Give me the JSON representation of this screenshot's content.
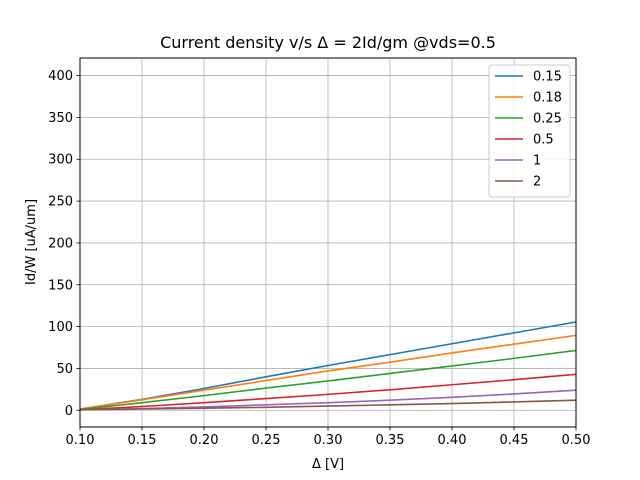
{
  "chart_data": {
    "type": "line",
    "title": "Current density v/s Δ = 2Id/gm @vds=0.5",
    "xlabel": "Δ [V]",
    "ylabel": "Id/W [uA/um]",
    "xlim": [
      0.1,
      0.5
    ],
    "ylim": [
      -20,
      421
    ],
    "xticks": [
      0.1,
      0.15,
      0.2,
      0.25,
      0.3,
      0.35,
      0.4,
      0.45,
      0.5
    ],
    "xtick_labels": [
      "0.10",
      "0.15",
      "0.20",
      "0.25",
      "0.30",
      "0.35",
      "0.40",
      "0.45",
      "0.50"
    ],
    "yticks": [
      0,
      50,
      100,
      150,
      200,
      250,
      300,
      350,
      400
    ],
    "ytick_labels": [
      "0",
      "50",
      "100",
      "150",
      "200",
      "250",
      "300",
      "350",
      "400"
    ],
    "grid": true,
    "legend_position": "top-right",
    "x": [
      0.1,
      0.15,
      0.2,
      0.25,
      0.3,
      0.35,
      0.4,
      0.45,
      0.5
    ],
    "series": [
      {
        "name": "0.15",
        "color": "#1f77b4",
        "values": [
          1.5,
          13,
          26,
          40,
          53.5,
          66.5,
          79.5,
          92.5,
          105.5
        ]
      },
      {
        "name": "0.18",
        "color": "#ff7f0e",
        "values": [
          1.5,
          12.5,
          24,
          35.5,
          47,
          57.5,
          68.5,
          79,
          89.5
        ]
      },
      {
        "name": "0.25",
        "color": "#2ca02c",
        "values": [
          1,
          9,
          17.5,
          26.5,
          35,
          44,
          53,
          62,
          71.5
        ]
      },
      {
        "name": "0.5",
        "color": "#d62728",
        "values": [
          0.5,
          4.5,
          9,
          14,
          19,
          24.5,
          30.5,
          36.5,
          43
        ]
      },
      {
        "name": "1",
        "color": "#9467bd",
        "values": [
          0.5,
          2,
          4,
          6.5,
          9,
          12,
          15.5,
          19.5,
          24
        ]
      },
      {
        "name": "2",
        "color": "#8c564b",
        "values": [
          0.5,
          1.5,
          2.5,
          3.5,
          5,
          6.5,
          8,
          10,
          12
        ]
      }
    ]
  }
}
